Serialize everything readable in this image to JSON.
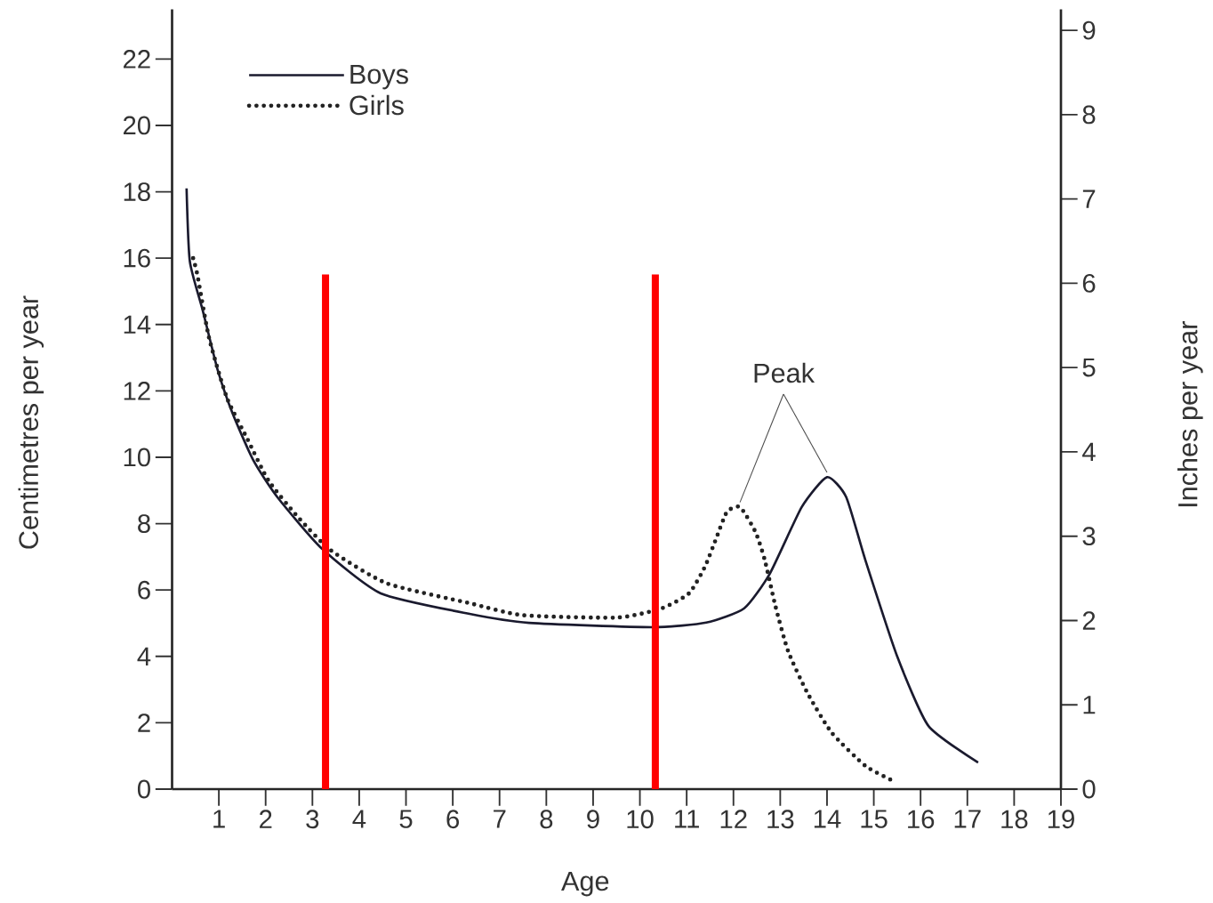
{
  "chart_data": {
    "type": "line",
    "xlabel": "Age",
    "ylabel": "Centimetres per year",
    "y2label": "Inches per year",
    "xlim": [
      0,
      19
    ],
    "xticks": [
      1,
      2,
      3,
      4,
      5,
      6,
      7,
      8,
      9,
      10,
      11,
      12,
      13,
      14,
      15,
      16,
      17,
      18,
      19
    ],
    "ylim": [
      0,
      23.5
    ],
    "yticks": [
      0,
      2,
      4,
      6,
      8,
      10,
      12,
      14,
      16,
      18,
      20,
      22
    ],
    "y2lim": [
      0,
      9.25
    ],
    "y2ticks": [
      0,
      1,
      2,
      3,
      4,
      5,
      6,
      7,
      8,
      9
    ],
    "legend": "top left",
    "marker": "none",
    "grid": false,
    "series": [
      {
        "name": "Boys",
        "color": "#1a1a2e",
        "line_style": "solid",
        "x": [
          0.31,
          0.38,
          0.66,
          0.98,
          1.3,
          1.74,
          2.25,
          3.2,
          4.46,
          6.36,
          7.63,
          10.27,
          11.42,
          12.23,
          12.78,
          13.46,
          14.0,
          14.41,
          14.82,
          15.5,
          16.17,
          17.23
        ],
        "values": [
          18.1,
          15.9,
          14.4,
          12.6,
          11.3,
          9.9,
          8.8,
          7.25,
          5.9,
          5.28,
          5.01,
          4.88,
          5.02,
          5.45,
          6.5,
          8.5,
          9.4,
          8.8,
          6.9,
          4.0,
          1.9,
          0.8
        ]
      },
      {
        "name": "Girls",
        "color": "#222222",
        "line_style": "dotted",
        "x": [
          0.45,
          0.54,
          0.79,
          1.17,
          1.61,
          2.06,
          2.69,
          3.39,
          4.59,
          6.37,
          7.5,
          9.52,
          10.47,
          11.05,
          11.39,
          11.63,
          11.86,
          12.14,
          12.47,
          12.67,
          12.9,
          13.17,
          13.58,
          14.1,
          14.82,
          15.41
        ],
        "values": [
          16.0,
          15.5,
          13.6,
          11.8,
          10.55,
          9.3,
          8.2,
          7.2,
          6.2,
          5.6,
          5.24,
          5.17,
          5.45,
          5.9,
          6.7,
          7.55,
          8.35,
          8.5,
          7.75,
          6.9,
          5.5,
          4.15,
          2.9,
          1.7,
          0.7,
          0.25
        ]
      }
    ],
    "ref_lines": [
      {
        "axis": "x",
        "value": 3.28,
        "color": "#ff0000"
      },
      {
        "axis": "x",
        "value": 10.33,
        "color": "#ff0000"
      }
    ],
    "annotations": [
      {
        "text": "Peak",
        "x": 14.0,
        "y": 9.4
      }
    ]
  }
}
